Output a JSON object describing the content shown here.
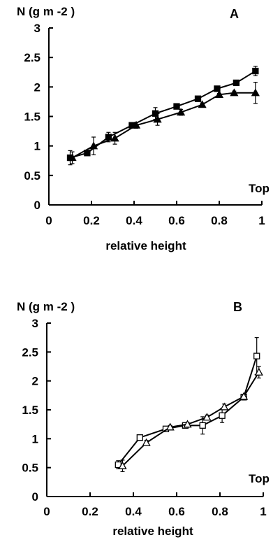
{
  "chart_data": [
    {
      "type": "line",
      "panel_label": "A",
      "ylabel": "N (g m -2  )",
      "xlabel": "relative height",
      "annotation": "Top",
      "xlim": [
        0,
        1
      ],
      "ylim": [
        0,
        3
      ],
      "xticks": [
        "0",
        "0.2",
        "0.4",
        "0.6",
        "0.8",
        "1"
      ],
      "yticks": [
        "0",
        "0.5",
        "1",
        "1.5",
        "2",
        "2.5",
        "3"
      ],
      "series": [
        {
          "marker": "filled-square",
          "x": [
            0.1,
            0.18,
            0.28,
            0.39,
            0.5,
            0.6,
            0.7,
            0.79,
            0.88,
            0.97
          ],
          "y": [
            0.8,
            0.88,
            1.15,
            1.35,
            1.55,
            1.67,
            1.8,
            1.97,
            2.07,
            2.27
          ],
          "err": [
            0.12,
            0.03,
            0.08,
            0.04,
            0.1,
            0.02,
            0.03,
            0.04,
            0.02,
            0.08
          ]
        },
        {
          "marker": "filled-triangle",
          "x": [
            0.11,
            0.21,
            0.31,
            0.41,
            0.51,
            0.62,
            0.72,
            0.8,
            0.87,
            0.97
          ],
          "y": [
            0.8,
            1.0,
            1.13,
            1.35,
            1.45,
            1.57,
            1.7,
            1.87,
            1.9,
            1.9
          ],
          "err": [
            0.1,
            0.15,
            0.1,
            0.05,
            0.1,
            0.05,
            0.03,
            0.02,
            0.03,
            0.18
          ]
        }
      ]
    },
    {
      "type": "line",
      "panel_label": "B",
      "ylabel": "N (g m -2  )",
      "xlabel": "relative height",
      "annotation": "Top",
      "xlim": [
        0,
        1
      ],
      "ylim": [
        0,
        3
      ],
      "xticks": [
        "0",
        "0.2",
        "0.4",
        "0.6",
        "0.8",
        "1"
      ],
      "yticks": [
        "0",
        "0.5",
        "1",
        "1.5",
        "2",
        "2.5",
        "3"
      ],
      "series": [
        {
          "marker": "open-square",
          "x": [
            0.33,
            0.43,
            0.55,
            0.64,
            0.72,
            0.81,
            0.91,
            0.97
          ],
          "y": [
            0.55,
            1.02,
            1.17,
            1.23,
            1.23,
            1.4,
            1.72,
            2.43
          ],
          "err": [
            0.07,
            0.02,
            0.03,
            0.02,
            0.15,
            0.12,
            0.05,
            0.32
          ]
        },
        {
          "marker": "open-triangle",
          "x": [
            0.35,
            0.46,
            0.57,
            0.65,
            0.74,
            0.82,
            0.91,
            0.98
          ],
          "y": [
            0.53,
            0.93,
            1.2,
            1.25,
            1.37,
            1.55,
            1.73,
            2.15
          ],
          "err": [
            0.1,
            0.04,
            0.03,
            0.03,
            0.04,
            0.05,
            0.03,
            0.1
          ]
        }
      ]
    }
  ]
}
